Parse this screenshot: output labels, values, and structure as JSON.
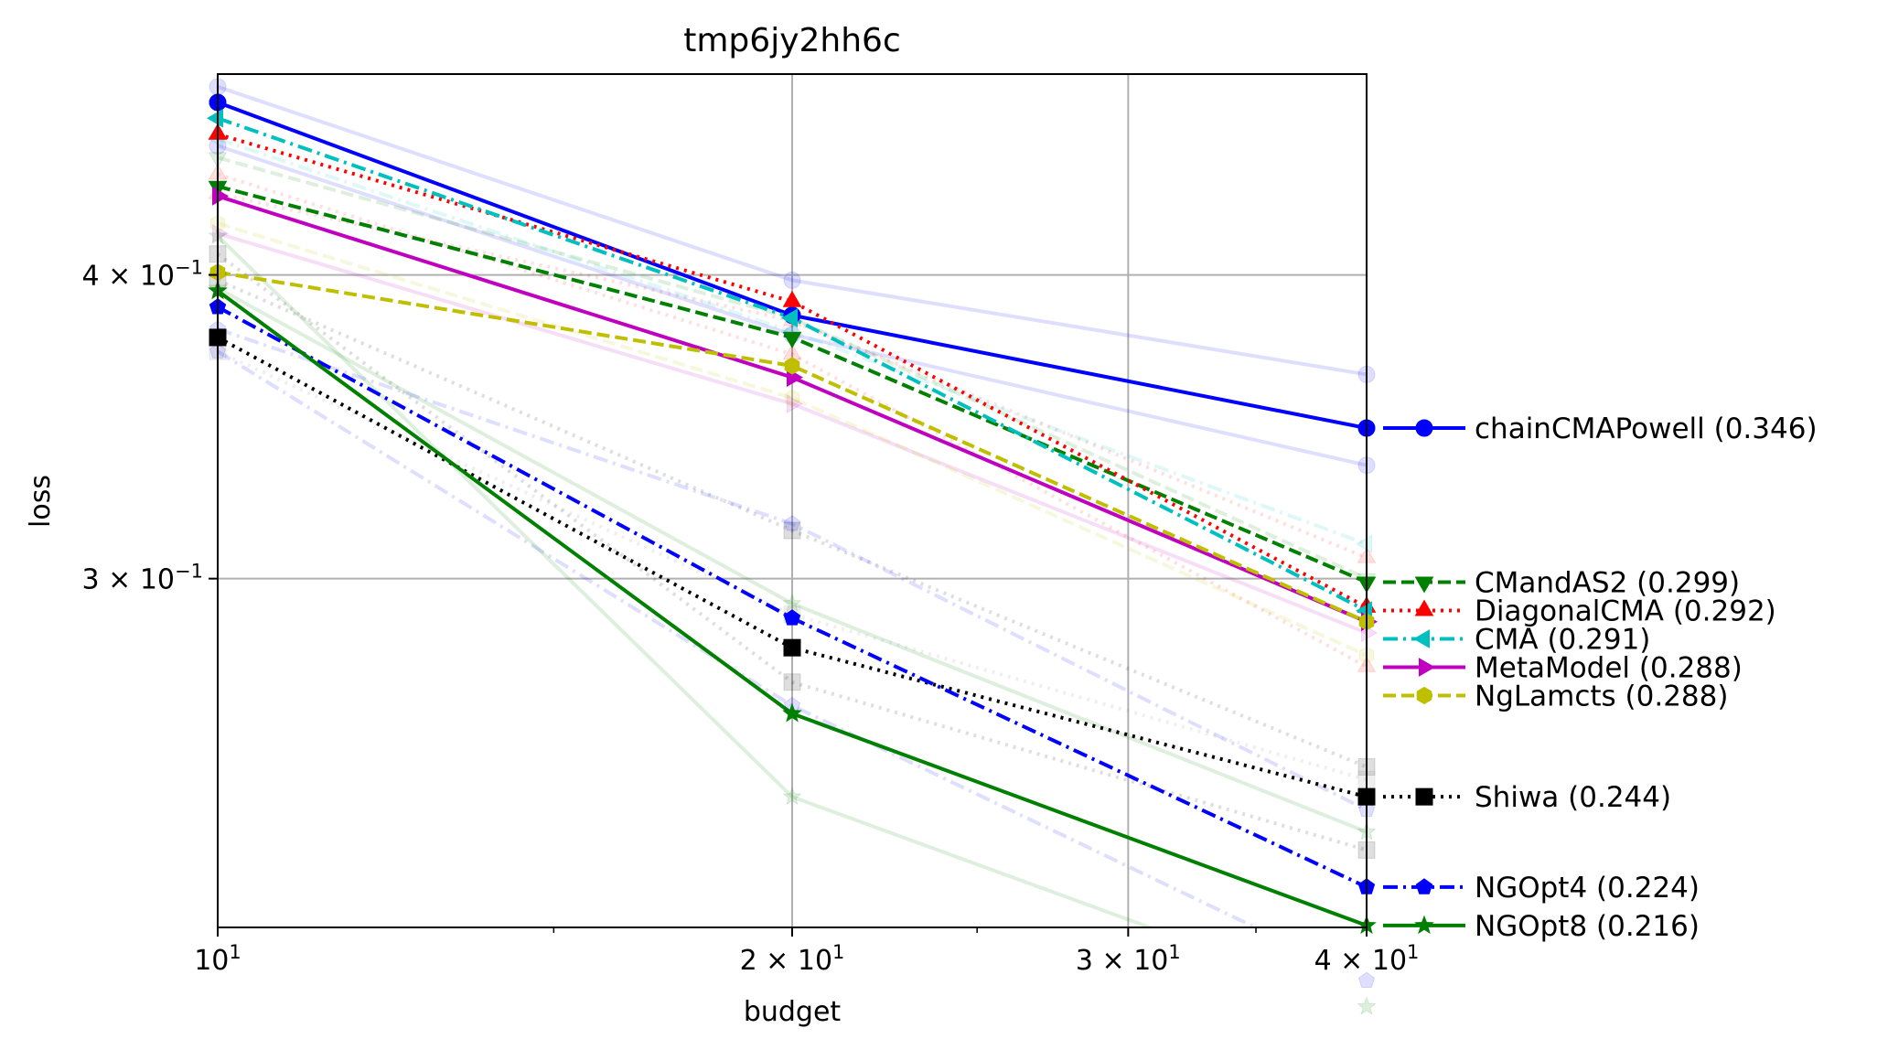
{
  "chart_data": {
    "type": "line",
    "title": "tmp6jy2hh6c",
    "xlabel": "budget",
    "ylabel": "loss",
    "x_scale": "log",
    "y_scale": "log",
    "xlim": [
      10,
      40
    ],
    "ylim": [
      0.2156,
      0.4838
    ],
    "grid": true,
    "legend_placement": "right, outside plot",
    "x_ticks": [
      {
        "value": 10,
        "base": "10",
        "exp": "1"
      },
      {
        "value": 20,
        "base": "2 × 10",
        "exp": "1"
      },
      {
        "value": 30,
        "base": "3 × 10",
        "exp": "1"
      },
      {
        "value": 40,
        "base": "4 × 10",
        "exp": "1"
      }
    ],
    "y_ticks": [
      {
        "value": 0.3,
        "base": "3 × 10",
        "exp": "−1"
      },
      {
        "value": 0.4,
        "base": "4 × 10",
        "exp": "−1"
      }
    ],
    "x": [
      10,
      20,
      40
    ],
    "series": [
      {
        "name": "chainCMAPowell (0.346)",
        "values": [
          0.471,
          0.385,
          0.346
        ],
        "color": "#0000ff",
        "dash": "solid",
        "marker": "circle"
      },
      {
        "name": "CMandAS2 (0.299)",
        "values": [
          0.435,
          0.377,
          0.299
        ],
        "color": "#008000",
        "dash": "dashed",
        "marker": "triangle-down"
      },
      {
        "name": "DiagonalCMA (0.292)",
        "values": [
          0.457,
          0.39,
          0.292
        ],
        "color": "#ff0000",
        "dash": "dotted",
        "marker": "triangle-up"
      },
      {
        "name": "CMA (0.291)",
        "values": [
          0.464,
          0.384,
          0.291
        ],
        "color": "#00bfbf",
        "dash": "dashdot",
        "marker": "triangle-left"
      },
      {
        "name": "MetaModel (0.288)",
        "values": [
          0.431,
          0.363,
          0.288
        ],
        "color": "#bf00bf",
        "dash": "solid",
        "marker": "triangle-right"
      },
      {
        "name": "NgLamcts (0.288)",
        "values": [
          0.401,
          0.367,
          0.288
        ],
        "color": "#bfbf00",
        "dash": "dashed",
        "marker": "hexagon"
      },
      {
        "name": "Shiwa (0.244)",
        "values": [
          0.377,
          0.281,
          0.244
        ],
        "color": "#000000",
        "dash": "dotted",
        "marker": "square"
      },
      {
        "name": "NGOpt4 (0.224)",
        "values": [
          0.388,
          0.289,
          0.224
        ],
        "color": "#0000ff",
        "dash": "dashdot",
        "marker": "pentagon"
      },
      {
        "name": "NGOpt8 (0.216)",
        "values": [
          0.394,
          0.264,
          0.216
        ],
        "color": "#008000",
        "dash": "solid",
        "marker": "star"
      }
    ],
    "background_series": [
      {
        "values": [
          0.478,
          0.398,
          0.364
        ],
        "color": "#0000ff",
        "dash": "solid",
        "marker": "circle"
      },
      {
        "values": [
          0.452,
          0.378,
          0.334
        ],
        "color": "#0000ff",
        "dash": "solid",
        "marker": "circle"
      },
      {
        "values": [
          0.447,
          0.384,
          0.3
        ],
        "color": "#008000",
        "dash": "dashed",
        "marker": "triangle-down"
      },
      {
        "values": [
          0.432,
          0.383,
          0.306
        ],
        "color": "#ff0000",
        "dash": "dotted",
        "marker": "triangle-up"
      },
      {
        "values": [
          0.44,
          0.371,
          0.276
        ],
        "color": "#ff0000",
        "dash": "dotted",
        "marker": "triangle-up"
      },
      {
        "values": [
          0.455,
          0.379,
          0.31
        ],
        "color": "#00bfbf",
        "dash": "dashdot",
        "marker": "triangle-left"
      },
      {
        "values": [
          0.416,
          0.354,
          0.285
        ],
        "color": "#bf00bf",
        "dash": "solid",
        "marker": "triangle-right"
      },
      {
        "values": [
          0.42,
          0.356,
          0.279
        ],
        "color": "#bfbf00",
        "dash": "dashed",
        "marker": "hexagon"
      },
      {
        "values": [
          0.398,
          0.314,
          0.251
        ],
        "color": "#000000",
        "dash": "dotted",
        "marker": "square"
      },
      {
        "values": [
          0.408,
          0.272,
          0.232
        ],
        "color": "#000000",
        "dash": "dotted",
        "marker": "square"
      },
      {
        "values": [
          0.38,
          0.316,
          0.241
        ],
        "color": "#0000ff",
        "dash": "dashdot",
        "marker": "pentagon"
      },
      {
        "values": [
          0.372,
          0.266,
          0.205
        ],
        "color": "#0000ff",
        "dash": "dashdot",
        "marker": "pentagon"
      },
      {
        "values": [
          0.415,
          0.244,
          0.2
        ],
        "color": "#008000",
        "dash": "solid",
        "marker": "star"
      },
      {
        "values": [
          0.395,
          0.293,
          0.236
        ],
        "color": "#008000",
        "dash": "solid",
        "marker": "star"
      },
      {
        "values": [
          0.372,
          0.29,
          0.248
        ],
        "color": "#808080",
        "dash": "dotted",
        "marker": "square"
      }
    ]
  }
}
